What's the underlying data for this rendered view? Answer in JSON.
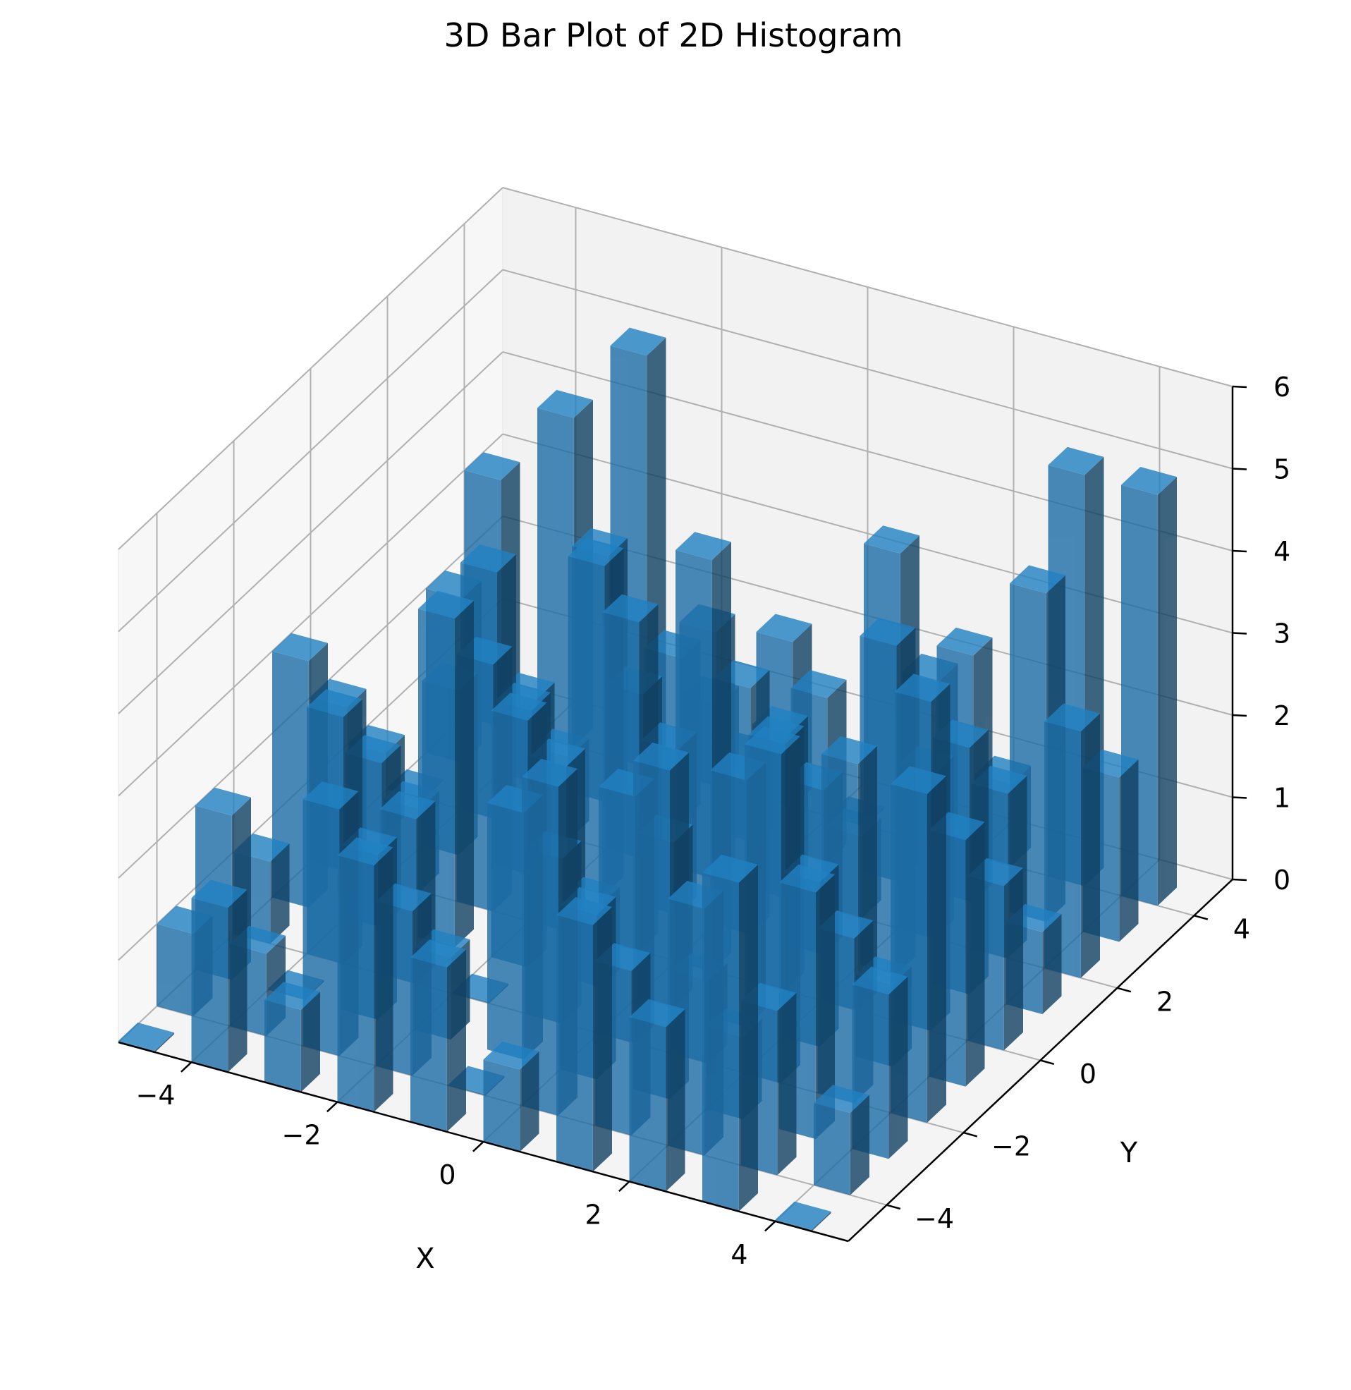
{
  "chart_data": {
    "type": "bar3d",
    "title": "3D Bar Plot of 2D Histogram",
    "xlabel": "X",
    "ylabel": "Y",
    "zlabel": "",
    "xlim": [
      -5,
      5
    ],
    "ylim": [
      -5,
      5
    ],
    "zlim": [
      0,
      6
    ],
    "x_ticks": [
      -4,
      -2,
      0,
      2,
      4
    ],
    "y_ticks": [
      -4,
      -2,
      0,
      2,
      4
    ],
    "z_ticks": [
      0,
      1,
      2,
      3,
      4,
      5,
      6
    ],
    "x_tick_labels": [
      "−4",
      "−2",
      "0",
      "2",
      "4"
    ],
    "y_tick_labels": [
      "−4",
      "−2",
      "0",
      "2",
      "4"
    ],
    "z_tick_labels": [
      "0",
      "1",
      "2",
      "3",
      "4",
      "5",
      "6"
    ],
    "bin_edges_x": [
      -5,
      -4,
      -3,
      -2,
      -1,
      0,
      1,
      2,
      3,
      4,
      5
    ],
    "bin_edges_y": [
      -5,
      -4,
      -3,
      -2,
      -1,
      0,
      1,
      2,
      3,
      4,
      5
    ],
    "bar_width": 0.5,
    "grid": true,
    "bar_color": "#1f77b4",
    "bar_alpha": 0.8,
    "counts": [
      [
        0,
        1,
        2,
        1,
        3,
        2,
        1,
        0,
        2,
        3
      ],
      [
        2,
        1,
        0,
        3,
        2,
        1,
        2,
        3,
        1,
        4
      ],
      [
        1,
        3,
        2,
        2,
        4,
        3,
        2,
        1,
        3,
        5
      ],
      [
        3,
        2,
        1,
        0,
        3,
        2,
        4,
        2,
        2,
        1
      ],
      [
        2,
        0,
        3,
        2,
        1,
        4,
        2,
        3,
        1,
        2
      ],
      [
        1,
        4,
        2,
        3,
        2,
        5,
        3,
        2,
        2,
        0
      ],
      [
        3,
        2,
        4,
        1,
        3,
        3,
        2,
        1,
        4,
        2
      ],
      [
        2,
        3,
        1,
        4,
        2,
        3,
        4,
        2,
        3,
        1
      ],
      [
        4,
        2,
        3,
        2,
        1,
        4,
        3,
        2,
        4,
        5
      ],
      [
        0,
        1,
        2,
        4,
        3,
        2,
        1,
        3,
        2,
        5
      ]
    ]
  }
}
